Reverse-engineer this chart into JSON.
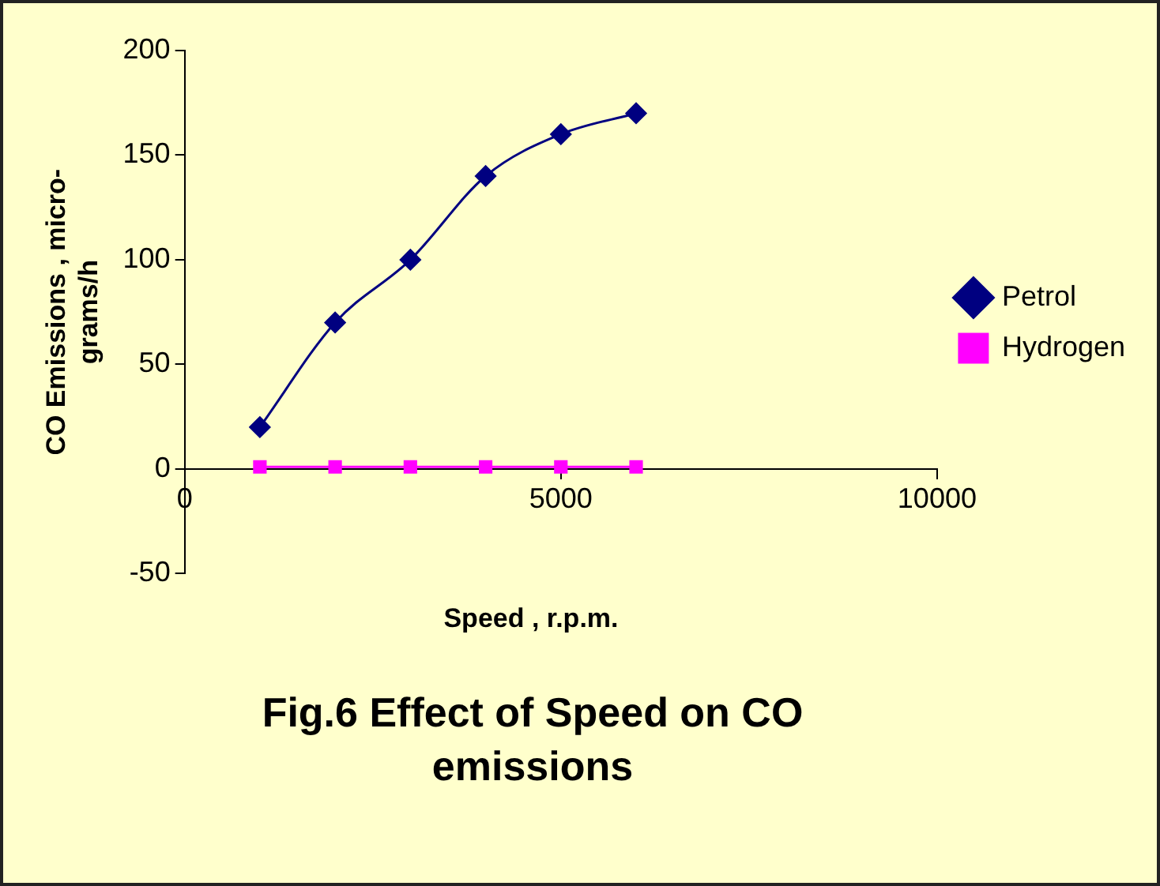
{
  "chart_data": {
    "type": "line",
    "title": "Fig.6 Effect of Speed on CO emissions",
    "xlabel": "Speed , r.p.m.",
    "ylabel": "CO Emissions , micro-grams/h",
    "x": [
      1000,
      2000,
      3000,
      4000,
      5000,
      6000
    ],
    "series": [
      {
        "name": "Petrol",
        "color": "#000080",
        "marker": "diamond",
        "values": [
          20,
          70,
          100,
          140,
          160,
          170
        ]
      },
      {
        "name": "Hydrogen",
        "color": "#ff00ff",
        "marker": "square",
        "values": [
          1,
          1,
          1,
          1,
          1,
          1
        ]
      }
    ],
    "xlim": [
      0,
      10000
    ],
    "xticks": [
      0,
      5000,
      10000
    ],
    "ylim": [
      -50,
      200
    ],
    "yticks": [
      -50,
      0,
      50,
      100,
      150,
      200
    ],
    "grid": false,
    "legend": "right"
  }
}
